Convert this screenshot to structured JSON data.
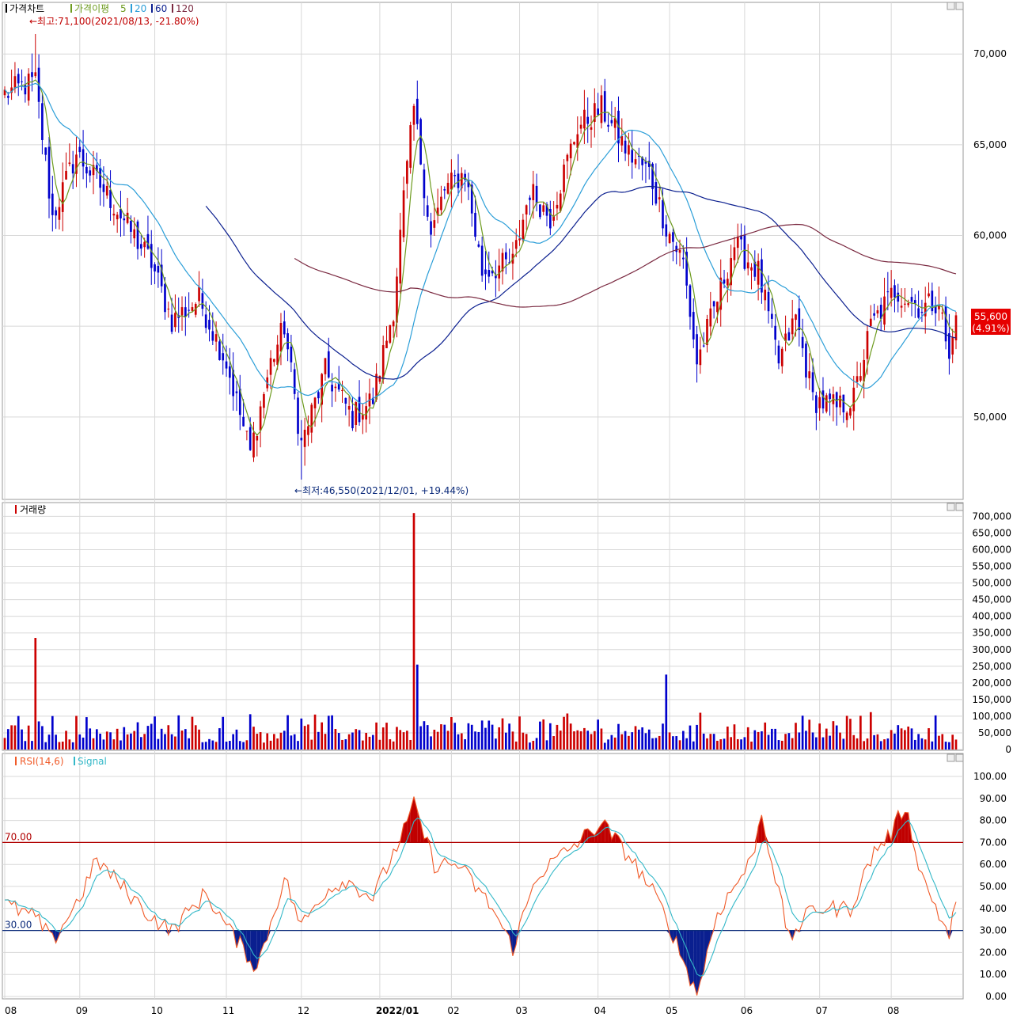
{
  "legend": {
    "price": {
      "label": "가격차트",
      "ma_prefix": "가격이평",
      "ma_periods": [
        "5",
        "20",
        "60",
        "120"
      ]
    },
    "volume": {
      "label": "거래량"
    },
    "rsi": {
      "label": "RSI(14,6)",
      "signal_label": "Signal"
    }
  },
  "annotations": {
    "high": "←최고:71,100(2021/08/13, -21.80%)",
    "low": "←최저:46,550(2021/12/01, +19.44%)"
  },
  "current": {
    "price": "55,600",
    "change": "(4.91%)"
  },
  "colors": {
    "up": "#cc0000",
    "down": "#0000cc",
    "ma5": "#6d9b1f",
    "ma20": "#2b9ed8",
    "ma60": "#0b1f8f",
    "ma120": "#7a2940",
    "rsi": "#f05a28",
    "signal": "#33b8c8",
    "ob_line": "#b00000",
    "os_line": "#0b2a7a",
    "grid": "#d8d8d8"
  },
  "chart_data": [
    {
      "type": "candlestick",
      "title": "가격차트",
      "ylim": [
        45500,
        72800
      ],
      "yticks": [
        "50,000",
        "55,000",
        "60,000",
        "65,000",
        "70,000"
      ],
      "xticks": [
        "08",
        "09",
        "10",
        "11",
        "12",
        "2022/01",
        "02",
        "03",
        "04",
        "05",
        "06",
        "07",
        "08"
      ],
      "x": [
        "2021-08-02",
        "2022-08-26"
      ],
      "close_anchors": [
        {
          "date": "2021-08-02",
          "close": 67800
        },
        {
          "date": "2021-08-13",
          "close": 68500
        },
        {
          "date": "2021-08-20",
          "close": 61000
        },
        {
          "date": "2021-08-31",
          "close": 64500
        },
        {
          "date": "2021-09-14",
          "close": 62000
        },
        {
          "date": "2021-09-30",
          "close": 58500
        },
        {
          "date": "2021-10-08",
          "close": 55300
        },
        {
          "date": "2021-10-20",
          "close": 56500
        },
        {
          "date": "2021-11-01",
          "close": 53000
        },
        {
          "date": "2021-11-10",
          "close": 48000
        },
        {
          "date": "2021-11-18",
          "close": 53000
        },
        {
          "date": "2021-11-24",
          "close": 55000
        },
        {
          "date": "2021-12-01",
          "close": 48500
        },
        {
          "date": "2021-12-10",
          "close": 52500
        },
        {
          "date": "2021-12-22",
          "close": 50000
        },
        {
          "date": "2021-12-30",
          "close": 51000
        },
        {
          "date": "2022-01-07",
          "close": 56000
        },
        {
          "date": "2022-01-12",
          "close": 62000
        },
        {
          "date": "2022-01-17",
          "close": 67000
        },
        {
          "date": "2022-01-24",
          "close": 60000
        },
        {
          "date": "2022-01-28",
          "close": 62500
        },
        {
          "date": "2022-02-07",
          "close": 63500
        },
        {
          "date": "2022-02-14",
          "close": 58000
        },
        {
          "date": "2022-02-25",
          "close": 58500
        },
        {
          "date": "2022-03-04",
          "close": 62500
        },
        {
          "date": "2022-03-14",
          "close": 61000
        },
        {
          "date": "2022-03-24",
          "close": 66000
        },
        {
          "date": "2022-04-04",
          "close": 67000
        },
        {
          "date": "2022-04-14",
          "close": 64500
        },
        {
          "date": "2022-04-22",
          "close": 63500
        },
        {
          "date": "2022-04-29",
          "close": 60500
        },
        {
          "date": "2022-05-06",
          "close": 58500
        },
        {
          "date": "2022-05-12",
          "close": 53000
        },
        {
          "date": "2022-05-20",
          "close": 56500
        },
        {
          "date": "2022-05-27",
          "close": 59500
        },
        {
          "date": "2022-06-07",
          "close": 58000
        },
        {
          "date": "2022-06-15",
          "close": 53000
        },
        {
          "date": "2022-06-22",
          "close": 55500
        },
        {
          "date": "2022-06-29",
          "close": 51000
        },
        {
          "date": "2022-07-08",
          "close": 50500
        },
        {
          "date": "2022-07-15",
          "close": 51000
        },
        {
          "date": "2022-07-22",
          "close": 55000
        },
        {
          "date": "2022-08-02",
          "close": 57000
        },
        {
          "date": "2022-08-12",
          "close": 56000
        },
        {
          "date": "2022-08-19",
          "close": 56500
        },
        {
          "date": "2022-08-24",
          "close": 53000
        },
        {
          "date": "2022-08-26",
          "close": 55600
        }
      ],
      "series": [
        {
          "name": "5"
        },
        {
          "name": "20"
        },
        {
          "name": "60"
        },
        {
          "name": "120"
        }
      ],
      "high": {
        "value": 71100,
        "date": "2021-08-13"
      },
      "low": {
        "value": 46550,
        "date": "2021-12-01"
      }
    },
    {
      "type": "bar",
      "title": "거래량",
      "ylim": [
        0,
        720000
      ],
      "yticks": [
        "0",
        "50,000",
        "100,000",
        "150,000",
        "200,000",
        "250,000",
        "300,000",
        "350,000",
        "400,000",
        "450,000",
        "500,000",
        "550,000",
        "600,000",
        "650,000",
        "700,000"
      ],
      "peaks": [
        {
          "date": "2021-08-13",
          "value": 335000
        },
        {
          "date": "2022-01-17",
          "value": 710000
        },
        {
          "date": "2022-01-18",
          "value": 255000
        },
        {
          "date": "2022-04-29",
          "value": 225000
        }
      ],
      "typical_range": [
        20000,
        120000
      ]
    },
    {
      "type": "line",
      "title": "RSI(14,6)",
      "ylim": [
        0,
        100
      ],
      "yticks": [
        "0.00",
        "10.00",
        "20.00",
        "30.00",
        "40.00",
        "50.00",
        "60.00",
        "70.00",
        "80.00",
        "90.00",
        "100.00"
      ],
      "levels": {
        "overbought": "70.00",
        "oversold": "30.00"
      },
      "rsi_anchors": [
        {
          "date": "2021-08-02",
          "value": 42
        },
        {
          "date": "2021-08-13",
          "value": 36
        },
        {
          "date": "2021-08-20",
          "value": 25
        },
        {
          "date": "2021-09-01",
          "value": 45
        },
        {
          "date": "2021-09-08",
          "value": 62
        },
        {
          "date": "2021-09-30",
          "value": 36
        },
        {
          "date": "2021-10-08",
          "value": 30
        },
        {
          "date": "2021-10-22",
          "value": 47
        },
        {
          "date": "2021-11-01",
          "value": 32
        },
        {
          "date": "2021-11-12",
          "value": 13
        },
        {
          "date": "2021-11-24",
          "value": 54
        },
        {
          "date": "2021-12-01",
          "value": 32
        },
        {
          "date": "2021-12-10",
          "value": 48
        },
        {
          "date": "2021-12-20",
          "value": 53
        },
        {
          "date": "2021-12-30",
          "value": 45
        },
        {
          "date": "2022-01-12",
          "value": 75
        },
        {
          "date": "2022-01-17",
          "value": 87
        },
        {
          "date": "2022-01-25",
          "value": 60
        },
        {
          "date": "2022-02-03",
          "value": 60
        },
        {
          "date": "2022-02-17",
          "value": 40
        },
        {
          "date": "2022-02-25",
          "value": 22
        },
        {
          "date": "2022-03-08",
          "value": 55
        },
        {
          "date": "2022-03-24",
          "value": 70
        },
        {
          "date": "2022-04-04",
          "value": 79
        },
        {
          "date": "2022-04-15",
          "value": 62
        },
        {
          "date": "2022-04-26",
          "value": 45
        },
        {
          "date": "2022-05-02",
          "value": 32
        },
        {
          "date": "2022-05-12",
          "value": 1
        },
        {
          "date": "2022-05-20",
          "value": 38
        },
        {
          "date": "2022-06-03",
          "value": 62
        },
        {
          "date": "2022-06-08",
          "value": 83
        },
        {
          "date": "2022-06-20",
          "value": 26
        },
        {
          "date": "2022-06-29",
          "value": 40
        },
        {
          "date": "2022-07-14",
          "value": 40
        },
        {
          "date": "2022-07-25",
          "value": 66
        },
        {
          "date": "2022-08-01",
          "value": 74
        },
        {
          "date": "2022-08-05",
          "value": 87
        },
        {
          "date": "2022-08-12",
          "value": 55
        },
        {
          "date": "2022-08-24",
          "value": 27
        },
        {
          "date": "2022-08-26",
          "value": 43
        }
      ]
    }
  ]
}
